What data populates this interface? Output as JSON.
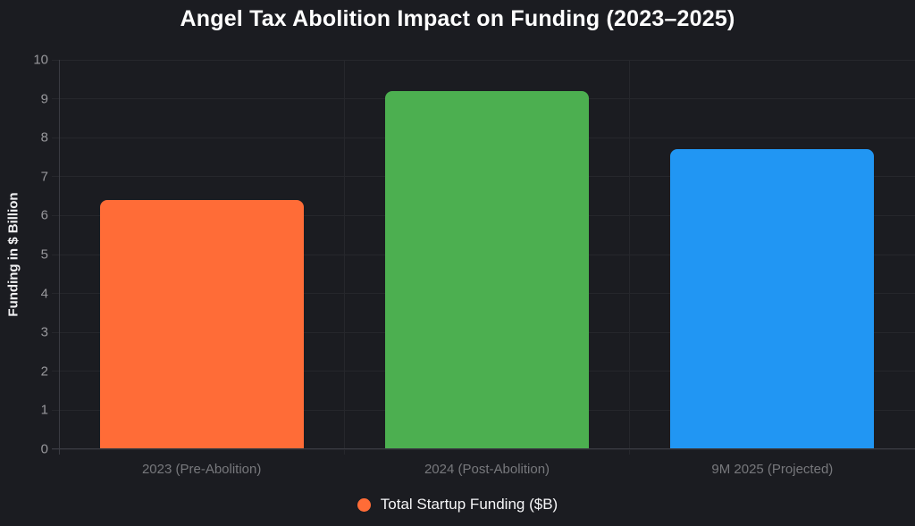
{
  "chart_data": {
    "type": "bar",
    "title": "Angel Tax Abolition Impact on Funding (2023–2025)",
    "categories": [
      "2023 (Pre-Abolition)",
      "2024 (Post-Abolition)",
      "9M 2025 (Projected)"
    ],
    "series": [
      {
        "name": "Total Startup Funding ($B)",
        "values": [
          6.4,
          9.2,
          7.7
        ],
        "colors": [
          "#ff6c37",
          "#4caf50",
          "#2196f3"
        ]
      }
    ],
    "xlabel": "",
    "ylabel": "Funding in $ Billion",
    "ylim": [
      0,
      10
    ],
    "yticks": [
      0,
      1,
      2,
      3,
      4,
      5,
      6,
      7,
      8,
      9,
      10
    ],
    "grid": "on",
    "legend_position": "bottom",
    "legend_label": "Total Startup Funding ($B)",
    "legend_marker_color": "#ff6c37",
    "theme": {
      "background": "#1b1c21",
      "gridline_color": "#26272c",
      "axis_color": "#3a3b42",
      "title_color": "#ffffff",
      "y_tick_color": "#98989c",
      "x_tick_color": "#77787c"
    }
  }
}
